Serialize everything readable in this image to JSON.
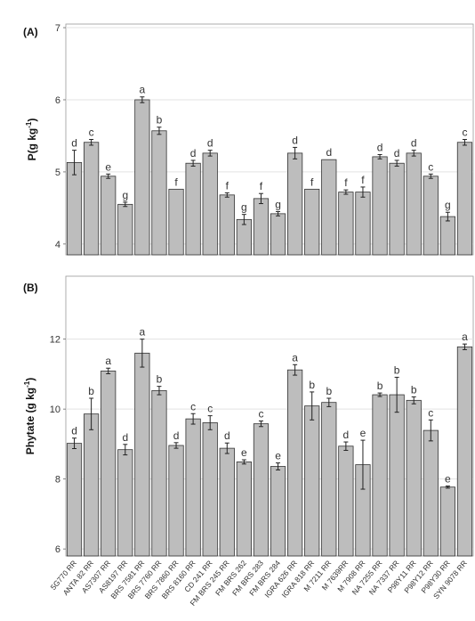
{
  "chart_data": [
    {
      "type": "bar",
      "panel_label": "(A)",
      "ylabel_main": "P(g kg",
      "ylabel_sup": "-1",
      "ylabel_close": ")",
      "ylim": [
        3.85,
        7.05
      ],
      "yticks": [
        4,
        5,
        6,
        7
      ],
      "grid": true,
      "categories": [
        "5G770 RR",
        "ANTA 82 RR",
        "AS7307 RR",
        "AS8197 RR",
        "BRS 7581 RR",
        "BRS 7760 RR",
        "BRS 7860 RR",
        "BRS 8160 RR",
        "CD 241 RR",
        "FM BRS 245 RR",
        "FM BRS 262",
        "FM BRS 283",
        "FM BRS 284",
        "IGRA 626 RR",
        "IGRA 818 RR",
        "M 7211 RR",
        "M 7639RR",
        "M 7908 RR",
        "NA 7255 RR",
        "NA 7337 RR",
        "P98Y11 RR",
        "P98Y12 RR",
        "P98Y30 RR",
        "SYN 9078 RR"
      ],
      "values": [
        5.13,
        5.41,
        4.94,
        4.55,
        6.0,
        5.57,
        4.76,
        5.12,
        5.26,
        4.68,
        4.34,
        4.63,
        4.42,
        5.26,
        4.76,
        5.17,
        4.72,
        4.72,
        5.21,
        5.12,
        5.26,
        4.94,
        4.38,
        5.41
      ],
      "errors": [
        0.17,
        0.04,
        0.03,
        0.03,
        0.04,
        0.05,
        0.0,
        0.04,
        0.04,
        0.03,
        0.07,
        0.07,
        0.03,
        0.08,
        0.0,
        0.0,
        0.03,
        0.07,
        0.03,
        0.04,
        0.04,
        0.03,
        0.06,
        0.04
      ],
      "letters": [
        "d",
        "c",
        "e",
        "g",
        "a",
        "b",
        "f",
        "d",
        "d",
        "f",
        "g",
        "f",
        "g",
        "d",
        "f",
        "d",
        "f",
        "f",
        "d",
        "d",
        "d",
        "c",
        "g",
        "c"
      ]
    },
    {
      "type": "bar",
      "panel_label": "(B)",
      "ylabel_main": "Phytate (g kg",
      "ylabel_sup": "-1",
      "ylabel_close": ")",
      "ylim": [
        5.8,
        13.8
      ],
      "yticks": [
        6,
        8,
        10,
        12
      ],
      "grid": true,
      "categories": [
        "5G770 RR",
        "ANTA 82 RR",
        "AS7307 RR",
        "AS8197 RR",
        "BRS 7581 RR",
        "BRS 7760 RR",
        "BRS 7860 RR",
        "BRS 8160 RR",
        "CD 241 RR",
        "FM BRS 245 RR",
        "FM BRS 262",
        "FM BRS 283",
        "FM BRS 284",
        "IGRA 626 RR",
        "IGRA 818 RR",
        "M 7211 RR",
        "M 7639RR",
        "M 7908 RR",
        "NA 7255 RR",
        "NA 7337 RR",
        "P98Y11 RR",
        "P98Y12 RR",
        "P98Y30 RR",
        "SYN 9078 RR"
      ],
      "values": [
        9.02,
        9.86,
        11.09,
        8.84,
        11.6,
        10.53,
        8.96,
        9.72,
        9.61,
        8.88,
        8.49,
        9.58,
        8.36,
        11.12,
        10.09,
        10.19,
        8.94,
        8.41,
        10.41,
        10.41,
        10.25,
        9.39,
        7.77,
        11.78
      ],
      "errors": [
        0.15,
        0.45,
        0.08,
        0.15,
        0.4,
        0.12,
        0.08,
        0.15,
        0.2,
        0.15,
        0.06,
        0.08,
        0.1,
        0.15,
        0.4,
        0.12,
        0.12,
        0.7,
        0.05,
        0.5,
        0.1,
        0.3,
        0.03,
        0.08
      ],
      "letters": [
        "d",
        "b",
        "a",
        "d",
        "a",
        "b",
        "d",
        "c",
        "c",
        "d",
        "e",
        "c",
        "e",
        "a",
        "b",
        "b",
        "d",
        "e",
        "b",
        "b",
        "b",
        "c",
        "e",
        "a"
      ]
    }
  ]
}
